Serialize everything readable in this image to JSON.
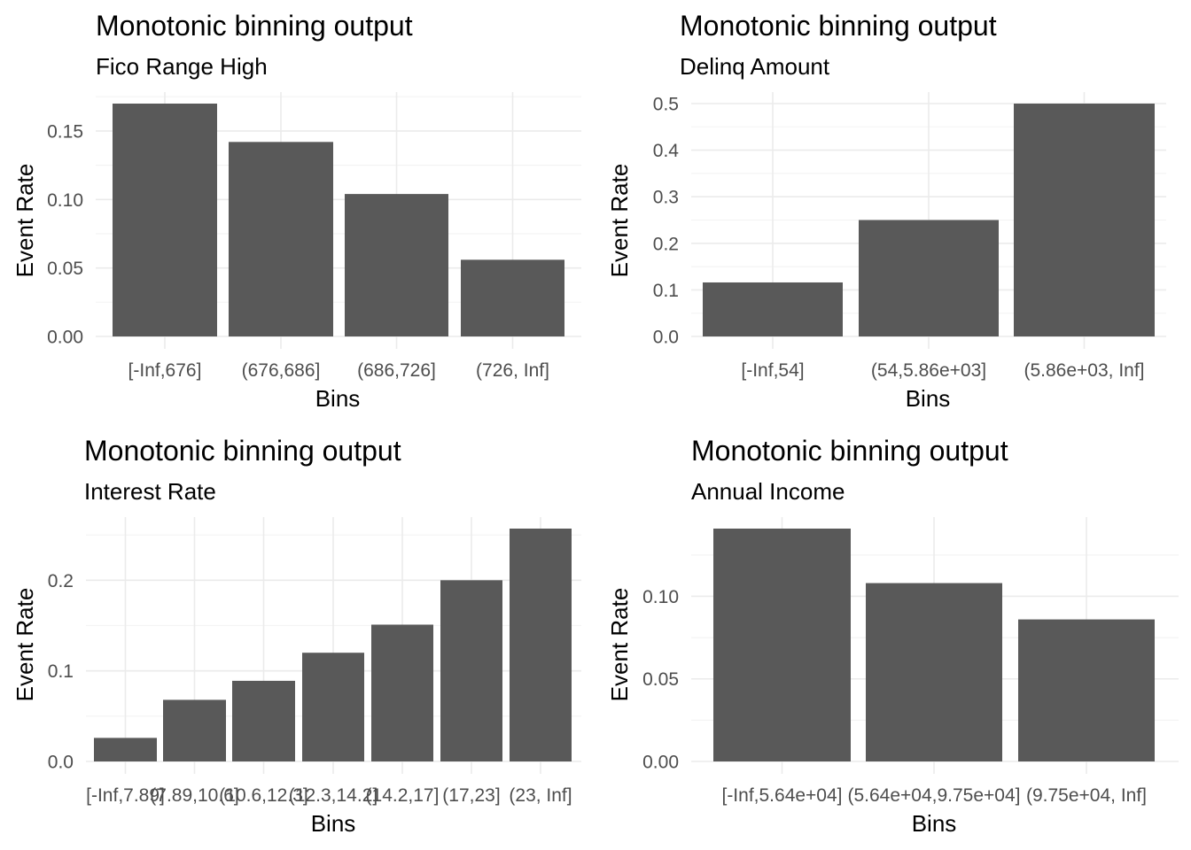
{
  "chart_data": [
    {
      "type": "bar",
      "title": "Monotonic binning output",
      "subtitle": "Fico Range High",
      "xlabel": "Bins",
      "ylabel": "Event Rate",
      "categories": [
        "[-Inf,676]",
        "(676,686]",
        "(686,726]",
        "(726, Inf]"
      ],
      "values": [
        0.17,
        0.142,
        0.104,
        0.056
      ],
      "ylim": [
        0,
        0.17
      ],
      "yticks": [
        0.0,
        0.05,
        0.1,
        0.15
      ],
      "ytick_labels": [
        "0.00",
        "0.05",
        "0.10",
        "0.15"
      ],
      "grid": true
    },
    {
      "type": "bar",
      "title": "Monotonic binning output",
      "subtitle": "Delinq Amount",
      "xlabel": "Bins",
      "ylabel": "Event Rate",
      "categories": [
        "[-Inf,54]",
        "(54,5.86e+03]",
        "(5.86e+03, Inf]"
      ],
      "values": [
        0.116,
        0.25,
        0.5
      ],
      "ylim": [
        0,
        0.5
      ],
      "yticks": [
        0.0,
        0.1,
        0.2,
        0.3,
        0.4,
        0.5
      ],
      "ytick_labels": [
        "0.0",
        "0.1",
        "0.2",
        "0.3",
        "0.4",
        "0.5"
      ],
      "grid": true
    },
    {
      "type": "bar",
      "title": "Monotonic binning output",
      "subtitle": "Interest Rate",
      "xlabel": "Bins",
      "ylabel": "Event Rate",
      "categories": [
        "[-Inf,7.89]",
        "(7.89,10.6]",
        "(10.6,12.3]",
        "(12.3,14.2]",
        "(14.2,17]",
        "(17,23]",
        "(23, Inf]"
      ],
      "values": [
        0.026,
        0.068,
        0.089,
        0.12,
        0.151,
        0.2,
        0.257
      ],
      "ylim": [
        0,
        0.257
      ],
      "yticks": [
        0.0,
        0.1,
        0.2
      ],
      "ytick_labels": [
        "0.0",
        "0.1",
        "0.2"
      ],
      "grid": true
    },
    {
      "type": "bar",
      "title": "Monotonic binning output",
      "subtitle": "Annual Income",
      "xlabel": "Bins",
      "ylabel": "Event Rate",
      "categories": [
        "[-Inf,5.64e+04]",
        "(5.64e+04,9.75e+04]",
        "(9.75e+04, Inf]"
      ],
      "values": [
        0.141,
        0.108,
        0.086
      ],
      "ylim": [
        0,
        0.141
      ],
      "yticks": [
        0.0,
        0.05,
        0.1
      ],
      "ytick_labels": [
        "0.00",
        "0.05",
        "0.10"
      ],
      "grid": true
    }
  ]
}
